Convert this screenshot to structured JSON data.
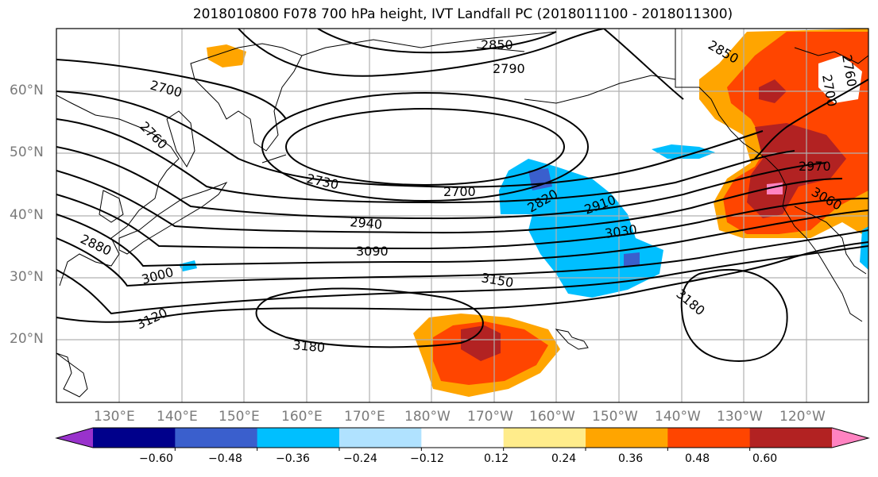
{
  "title": "2018010800 F078 700 hPa height, IVT Landfall PC (2018011100 - 2018011300)",
  "lat_labels": [
    "60°N",
    "50°N",
    "40°N",
    "30°N",
    "20°N"
  ],
  "lon_labels": [
    "130°E",
    "140°E",
    "150°E",
    "160°E",
    "170°E",
    "180°W",
    "170°W",
    "160°W",
    "150°W",
    "140°W",
    "130°W",
    "120°W"
  ],
  "contour_labels": [
    "2850",
    "2790",
    "2850",
    "2700",
    "2760",
    "2730",
    "2700",
    "2940",
    "2820",
    "2910",
    "3030",
    "3090",
    "2880",
    "3000",
    "3150",
    "3120",
    "3180",
    "3180",
    "2970",
    "3060",
    "2700",
    "2760"
  ],
  "colorbar": {
    "ticks": [
      "−0.60",
      "−0.48",
      "−0.36",
      "−0.24",
      "−0.12",
      "0.12",
      "0.24",
      "0.36",
      "0.48",
      "0.60"
    ],
    "colors": [
      "#9932cc",
      "#00008b",
      "#3a5fcd",
      "#00bfff",
      "#b0e2ff",
      "#ffffff",
      "#ffec8b",
      "#ffa500",
      "#ff4500",
      "#b22222",
      "#ff83c1"
    ]
  }
}
